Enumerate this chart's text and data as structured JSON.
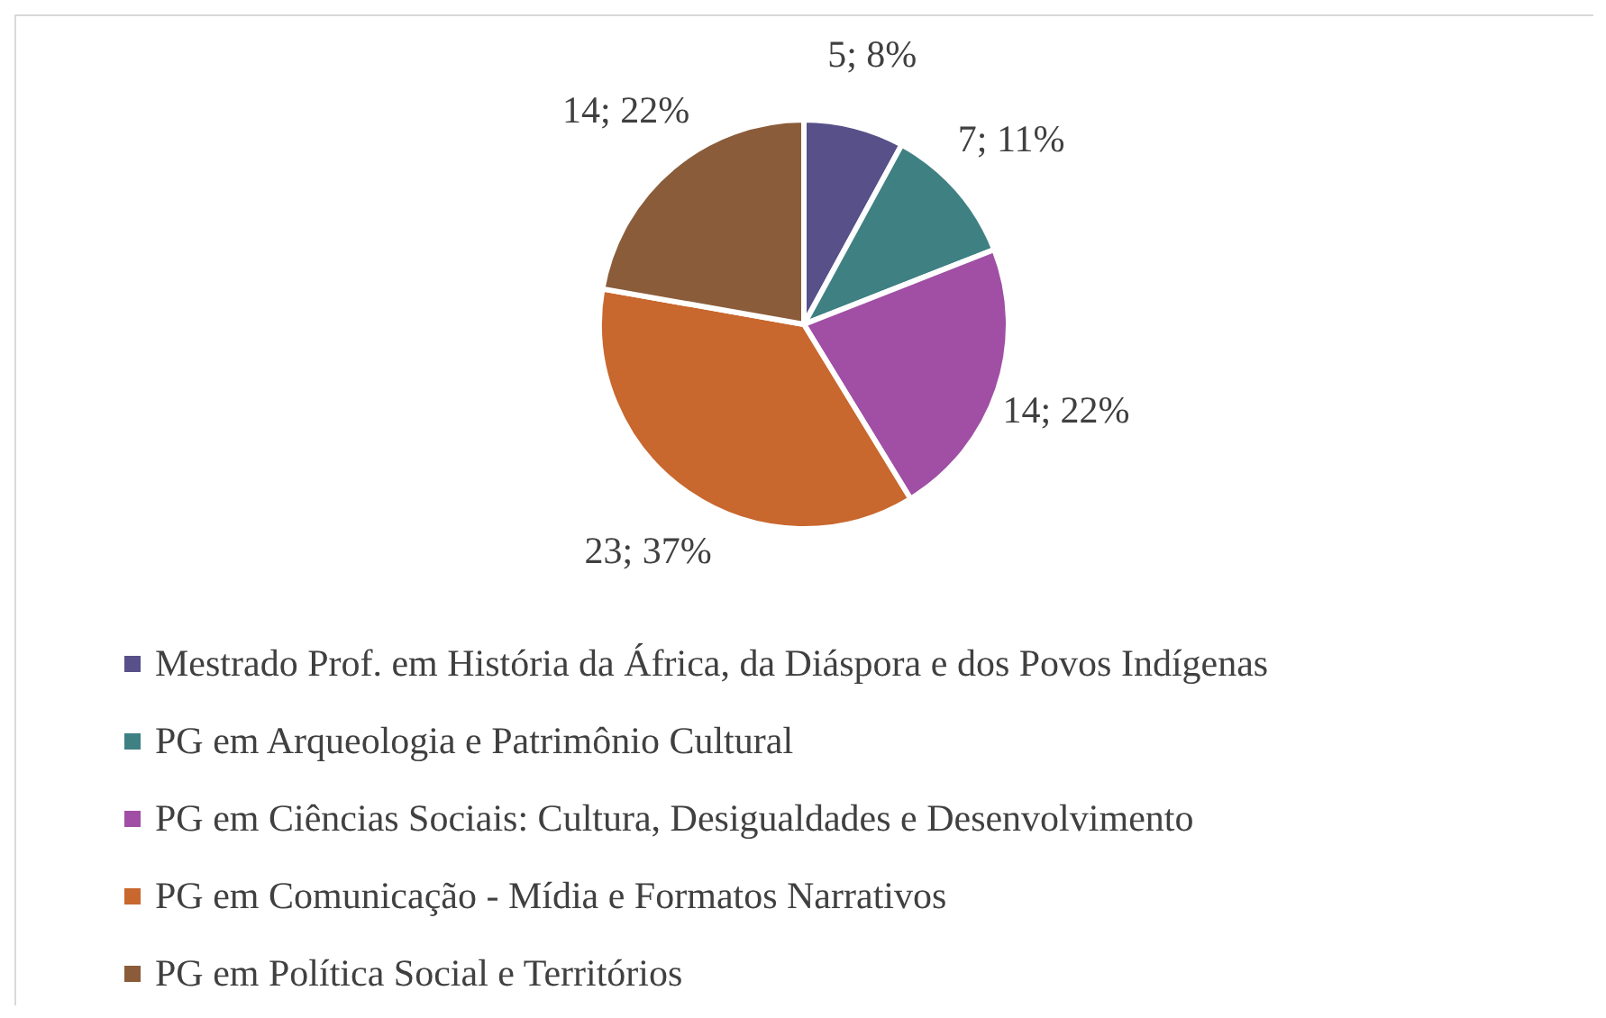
{
  "chart_data": {
    "type": "pie",
    "categories": [
      "Mestrado Prof. em História da África, da Diáspora e dos Povos Indígenas",
      "PG em Arqueologia e Patrimônio Cultural",
      "PG em Ciências Sociais: Cultura, Desigualdades e Desenvolvimento",
      "PG em Comunicação - Mídia e Formatos Narrativos",
      "PG em Política Social e Territórios"
    ],
    "values": [
      5,
      7,
      14,
      23,
      14
    ],
    "value_labels": [
      "5; 8%",
      "7; 11%",
      "14; 22%",
      "23; 37%",
      "14; 22%"
    ],
    "colors": [
      "#575089",
      "#3f8083",
      "#a04fa5",
      "#c8672e",
      "#8a5c3a"
    ],
    "legend": "bottom"
  }
}
